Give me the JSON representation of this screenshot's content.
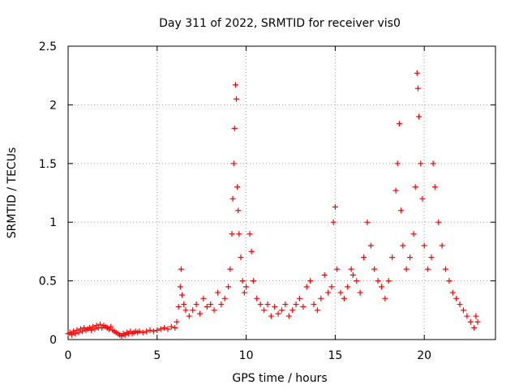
{
  "chart_data": {
    "type": "scatter",
    "title": "Day 311 of 2022, SRMTID for receiver vis0",
    "xlabel": "GPS time / hours",
    "ylabel": "SRMTID / TECUs",
    "xlim": [
      0,
      24
    ],
    "ylim": [
      0,
      2.5
    ],
    "xticks": [
      0,
      5,
      10,
      15,
      20
    ],
    "xtick_labels": [
      "0",
      "5",
      "10",
      "15",
      "20"
    ],
    "yticks": [
      0,
      0.5,
      1,
      1.5,
      2,
      2.5
    ],
    "ytick_labels": [
      "0",
      "0.5",
      "1",
      "1.5",
      "2",
      "2.5"
    ],
    "grid": true,
    "marker": "+",
    "series": [
      {
        "name": "SRMTID",
        "color": "#ff0000",
        "points": [
          [
            0.0,
            0.05
          ],
          [
            0.1,
            0.06
          ],
          [
            0.2,
            0.04
          ],
          [
            0.3,
            0.07
          ],
          [
            0.4,
            0.05
          ],
          [
            0.5,
            0.08
          ],
          [
            0.6,
            0.06
          ],
          [
            0.7,
            0.09
          ],
          [
            0.8,
            0.07
          ],
          [
            0.9,
            0.1
          ],
          [
            1.0,
            0.08
          ],
          [
            1.1,
            0.09
          ],
          [
            1.2,
            0.1
          ],
          [
            1.3,
            0.08
          ],
          [
            1.4,
            0.11
          ],
          [
            1.5,
            0.09
          ],
          [
            1.6,
            0.12
          ],
          [
            1.7,
            0.1
          ],
          [
            1.8,
            0.13
          ],
          [
            1.9,
            0.1
          ],
          [
            2.0,
            0.12
          ],
          [
            2.1,
            0.11
          ],
          [
            2.2,
            0.1
          ],
          [
            2.3,
            0.09
          ],
          [
            2.4,
            0.11
          ],
          [
            2.5,
            0.08
          ],
          [
            2.6,
            0.07
          ],
          [
            2.7,
            0.06
          ],
          [
            2.8,
            0.05
          ],
          [
            2.9,
            0.04
          ],
          [
            3.0,
            0.03
          ],
          [
            3.1,
            0.05
          ],
          [
            3.2,
            0.04
          ],
          [
            3.3,
            0.06
          ],
          [
            3.4,
            0.05
          ],
          [
            3.5,
            0.07
          ],
          [
            3.6,
            0.05
          ],
          [
            3.7,
            0.06
          ],
          [
            3.8,
            0.07
          ],
          [
            3.9,
            0.06
          ],
          [
            4.0,
            0.07
          ],
          [
            4.2,
            0.06
          ],
          [
            4.4,
            0.07
          ],
          [
            4.6,
            0.08
          ],
          [
            4.8,
            0.07
          ],
          [
            5.0,
            0.08
          ],
          [
            5.2,
            0.09
          ],
          [
            5.4,
            0.1
          ],
          [
            5.6,
            0.09
          ],
          [
            5.8,
            0.11
          ],
          [
            6.0,
            0.1
          ],
          [
            6.1,
            0.15
          ],
          [
            6.2,
            0.28
          ],
          [
            6.3,
            0.45
          ],
          [
            6.35,
            0.6
          ],
          [
            6.4,
            0.38
          ],
          [
            6.5,
            0.3
          ],
          [
            6.6,
            0.25
          ],
          [
            6.8,
            0.2
          ],
          [
            7.0,
            0.25
          ],
          [
            7.2,
            0.3
          ],
          [
            7.4,
            0.22
          ],
          [
            7.6,
            0.35
          ],
          [
            7.8,
            0.28
          ],
          [
            8.0,
            0.3
          ],
          [
            8.2,
            0.25
          ],
          [
            8.4,
            0.4
          ],
          [
            8.6,
            0.3
          ],
          [
            8.8,
            0.35
          ],
          [
            9.0,
            0.45
          ],
          [
            9.1,
            0.6
          ],
          [
            9.2,
            0.9
          ],
          [
            9.25,
            1.2
          ],
          [
            9.3,
            1.5
          ],
          [
            9.35,
            1.8
          ],
          [
            9.4,
            2.17
          ],
          [
            9.45,
            2.05
          ],
          [
            9.5,
            1.3
          ],
          [
            9.55,
            1.1
          ],
          [
            9.6,
            0.9
          ],
          [
            9.7,
            0.7
          ],
          [
            9.8,
            0.5
          ],
          [
            9.9,
            0.4
          ],
          [
            10.0,
            0.45
          ],
          [
            10.2,
            0.9
          ],
          [
            10.3,
            0.75
          ],
          [
            10.4,
            0.5
          ],
          [
            10.6,
            0.35
          ],
          [
            10.8,
            0.3
          ],
          [
            11.0,
            0.25
          ],
          [
            11.2,
            0.3
          ],
          [
            11.4,
            0.2
          ],
          [
            11.6,
            0.28
          ],
          [
            11.8,
            0.22
          ],
          [
            12.0,
            0.25
          ],
          [
            12.2,
            0.3
          ],
          [
            12.4,
            0.2
          ],
          [
            12.6,
            0.25
          ],
          [
            12.8,
            0.3
          ],
          [
            13.0,
            0.35
          ],
          [
            13.2,
            0.28
          ],
          [
            13.4,
            0.45
          ],
          [
            13.6,
            0.5
          ],
          [
            13.8,
            0.3
          ],
          [
            14.0,
            0.25
          ],
          [
            14.2,
            0.35
          ],
          [
            14.4,
            0.55
          ],
          [
            14.6,
            0.4
          ],
          [
            14.8,
            0.45
          ],
          [
            14.9,
            1.0
          ],
          [
            15.0,
            1.13
          ],
          [
            15.1,
            0.6
          ],
          [
            15.3,
            0.4
          ],
          [
            15.5,
            0.35
          ],
          [
            15.7,
            0.45
          ],
          [
            15.9,
            0.6
          ],
          [
            16.0,
            0.55
          ],
          [
            16.2,
            0.5
          ],
          [
            16.4,
            0.4
          ],
          [
            16.6,
            0.7
          ],
          [
            16.8,
            1.0
          ],
          [
            17.0,
            0.8
          ],
          [
            17.2,
            0.6
          ],
          [
            17.4,
            0.5
          ],
          [
            17.6,
            0.45
          ],
          [
            17.8,
            0.35
          ],
          [
            18.0,
            0.5
          ],
          [
            18.2,
            0.7
          ],
          [
            18.4,
            1.27
          ],
          [
            18.5,
            1.5
          ],
          [
            18.6,
            1.84
          ],
          [
            18.7,
            1.1
          ],
          [
            18.8,
            0.8
          ],
          [
            19.0,
            0.6
          ],
          [
            19.2,
            0.7
          ],
          [
            19.4,
            0.9
          ],
          [
            19.5,
            1.3
          ],
          [
            19.6,
            2.27
          ],
          [
            19.65,
            2.14
          ],
          [
            19.7,
            1.9
          ],
          [
            19.8,
            1.5
          ],
          [
            19.9,
            1.2
          ],
          [
            20.0,
            0.8
          ],
          [
            20.2,
            0.6
          ],
          [
            20.4,
            0.7
          ],
          [
            20.5,
            1.5
          ],
          [
            20.6,
            1.3
          ],
          [
            20.8,
            1.0
          ],
          [
            21.0,
            0.8
          ],
          [
            21.2,
            0.6
          ],
          [
            21.4,
            0.5
          ],
          [
            21.6,
            0.4
          ],
          [
            21.8,
            0.35
          ],
          [
            22.0,
            0.3
          ],
          [
            22.2,
            0.25
          ],
          [
            22.4,
            0.2
          ],
          [
            22.6,
            0.15
          ],
          [
            22.8,
            0.1
          ],
          [
            22.9,
            0.2
          ],
          [
            23.0,
            0.15
          ]
        ]
      }
    ]
  }
}
